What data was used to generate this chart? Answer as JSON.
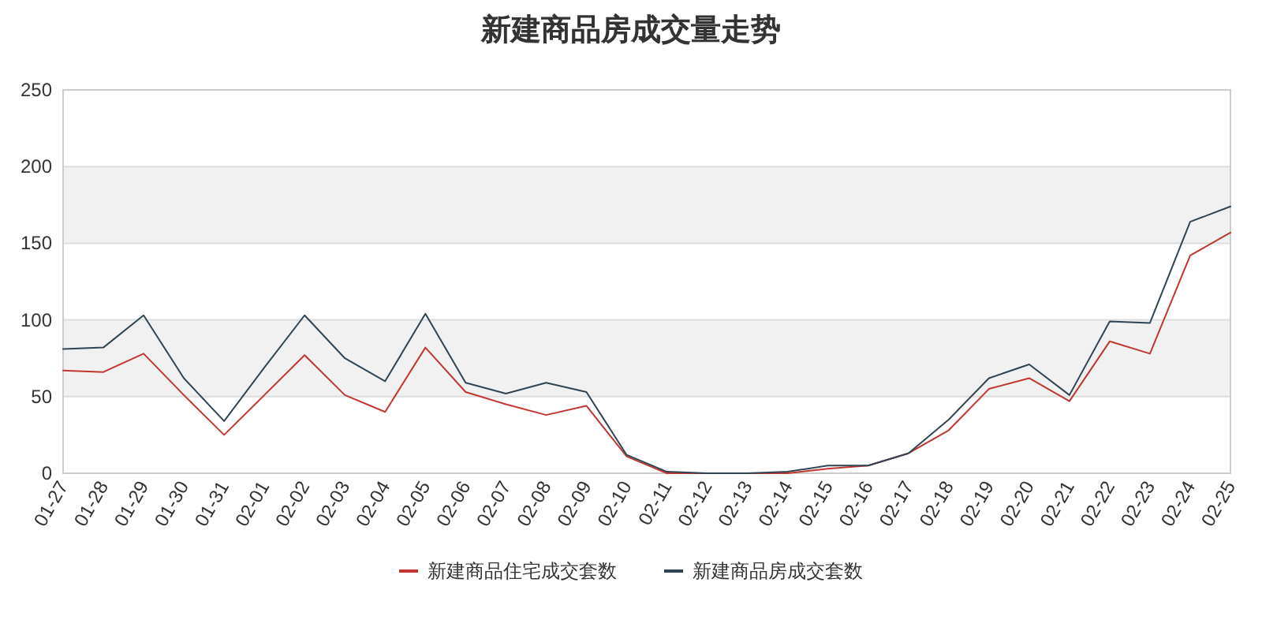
{
  "chart_data": {
    "type": "line",
    "title": "新建商品房成交量走势",
    "categories": [
      "01-27",
      "01-28",
      "01-29",
      "01-30",
      "01-31",
      "02-01",
      "02-02",
      "02-03",
      "02-04",
      "02-05",
      "02-06",
      "02-07",
      "02-08",
      "02-09",
      "02-10",
      "02-11",
      "02-12",
      "02-13",
      "02-14",
      "02-15",
      "02-16",
      "02-17",
      "02-18",
      "02-19",
      "02-20",
      "02-21",
      "02-22",
      "02-23",
      "02-24",
      "02-25"
    ],
    "series": [
      {
        "name": "新建商品住宅成交套数",
        "color": "#c23531",
        "values": [
          67,
          66,
          78,
          51,
          25,
          51,
          77,
          51,
          40,
          82,
          53,
          45,
          38,
          44,
          11,
          0,
          0,
          0,
          0,
          3,
          5,
          13,
          28,
          55,
          62,
          47,
          86,
          78,
          142,
          157
        ]
      },
      {
        "name": "新建商品房成交套数",
        "color": "#2f4554",
        "values": [
          81,
          82,
          103,
          62,
          34,
          69,
          103,
          75,
          60,
          104,
          59,
          52,
          59,
          53,
          12,
          1,
          0,
          0,
          1,
          5,
          5,
          13,
          35,
          62,
          71,
          51,
          99,
          98,
          164,
          174
        ]
      }
    ],
    "ylim": [
      0,
      250
    ],
    "yticks": [
      0,
      50,
      100,
      150,
      200,
      250
    ],
    "bands": [
      {
        "axis": "y",
        "from": 50,
        "to": 100,
        "color": "#f1f1f1"
      },
      {
        "axis": "y",
        "from": 150,
        "to": 200,
        "color": "#f1f1f1"
      }
    ],
    "grid": "y",
    "legend": "bottom",
    "line_style": "solid"
  }
}
